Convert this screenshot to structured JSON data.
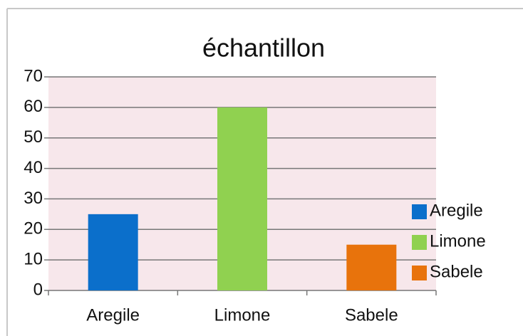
{
  "chart_data": {
    "type": "bar",
    "title": "échantillon",
    "categories": [
      "Aregile",
      "Limone",
      "Sabele"
    ],
    "values": [
      25,
      60,
      15
    ],
    "colors": [
      "#0b6fcb",
      "#90d150",
      "#e8730c"
    ],
    "ylim": [
      0,
      70
    ],
    "yticks": [
      0,
      10,
      20,
      30,
      40,
      50,
      60,
      70
    ],
    "grid": true,
    "legend": "right"
  }
}
